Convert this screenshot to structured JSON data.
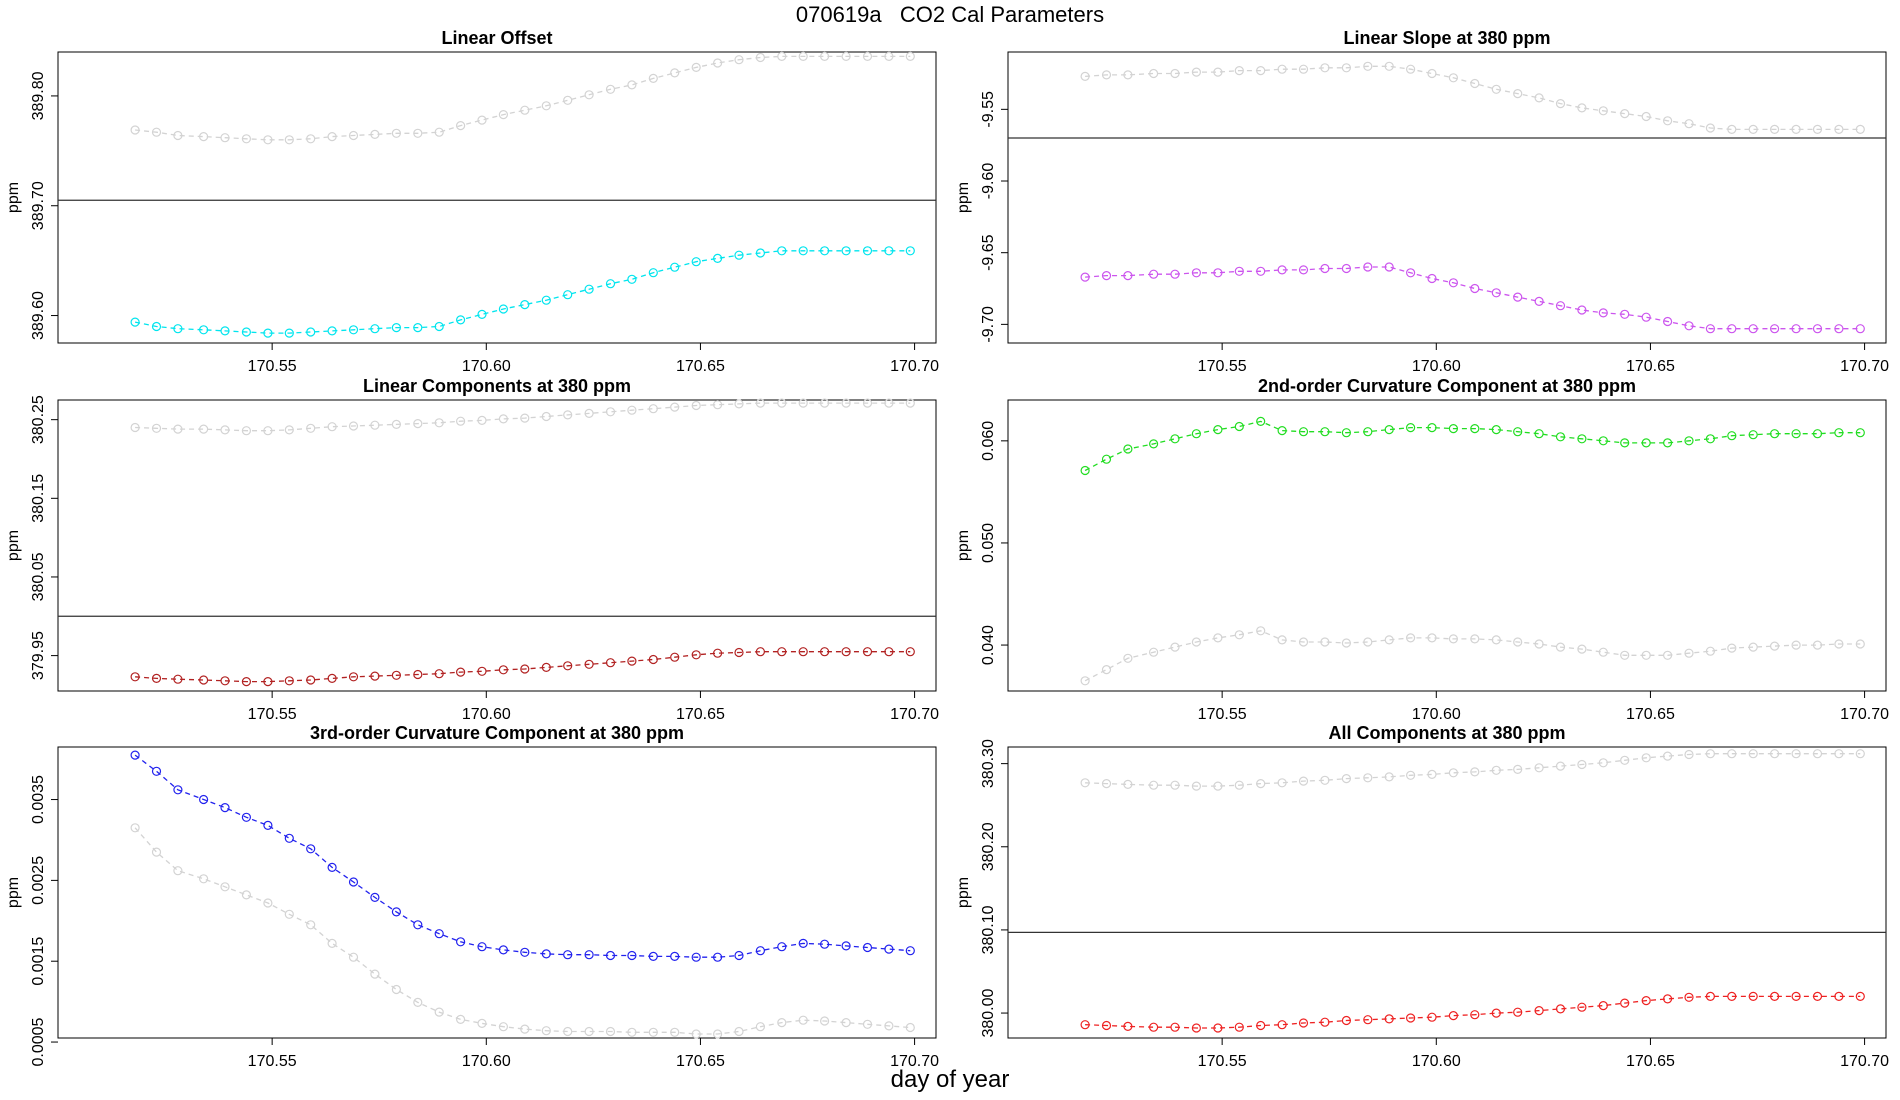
{
  "title": "070619a   CO2 Cal Parameters",
  "xlabel": "day of year",
  "chart_data": [
    {
      "type": "line",
      "title": "Linear Offset",
      "ylabel": "ppm",
      "xlim": [
        170.5,
        170.705
      ],
      "ylim": [
        389.575,
        389.84
      ],
      "x_ticks": [
        "170.55",
        "170.60",
        "170.65",
        "170.70"
      ],
      "y_ticks": [
        "389.60",
        "389.70",
        "389.80"
      ],
      "hline": 389.705,
      "x": [
        170.518,
        170.523,
        170.528,
        170.534,
        170.539,
        170.544,
        170.549,
        170.554,
        170.559,
        170.564,
        170.569,
        170.574,
        170.579,
        170.584,
        170.589,
        170.594,
        170.599,
        170.604,
        170.609,
        170.614,
        170.619,
        170.624,
        170.629,
        170.634,
        170.639,
        170.644,
        170.649,
        170.654,
        170.659,
        170.664,
        170.669,
        170.674,
        170.679,
        170.684,
        170.689,
        170.694,
        170.699
      ],
      "series": [
        {
          "color": "#d3d3d3",
          "values": [
            389.769,
            389.767,
            389.764,
            389.763,
            389.762,
            389.761,
            389.76,
            389.76,
            389.761,
            389.763,
            389.764,
            389.765,
            389.766,
            389.766,
            389.767,
            389.773,
            389.778,
            389.783,
            389.787,
            389.791,
            389.796,
            389.801,
            389.806,
            389.81,
            389.816,
            389.821,
            389.826,
            389.83,
            389.833,
            389.835,
            389.836,
            389.836,
            389.836,
            389.836,
            389.836,
            389.836,
            389.836
          ]
        },
        {
          "color": "#00e5ee",
          "values": [
            389.594,
            389.59,
            389.588,
            389.587,
            389.586,
            389.585,
            389.584,
            389.584,
            389.585,
            389.586,
            389.587,
            389.588,
            389.589,
            389.589,
            389.59,
            389.596,
            389.601,
            389.606,
            389.61,
            389.614,
            389.619,
            389.624,
            389.629,
            389.633,
            389.639,
            389.644,
            389.649,
            389.652,
            389.655,
            389.657,
            389.659,
            389.659,
            389.659,
            389.659,
            389.659,
            389.659,
            389.659
          ]
        }
      ]
    },
    {
      "type": "line",
      "title": "Linear Slope at 380 ppm",
      "ylabel": "ppm",
      "xlim": [
        170.5,
        170.705
      ],
      "ylim": [
        -9.713,
        -9.51
      ],
      "x_ticks": [
        "170.55",
        "170.60",
        "170.65",
        "170.70"
      ],
      "y_ticks": [
        "-9.55",
        "-9.60",
        "-9.65",
        "-9.70"
      ],
      "hline": -9.57,
      "x": [
        170.518,
        170.523,
        170.528,
        170.534,
        170.539,
        170.544,
        170.549,
        170.554,
        170.559,
        170.564,
        170.569,
        170.574,
        170.579,
        170.584,
        170.589,
        170.594,
        170.599,
        170.604,
        170.609,
        170.614,
        170.619,
        170.624,
        170.629,
        170.634,
        170.639,
        170.644,
        170.649,
        170.654,
        170.659,
        170.664,
        170.669,
        170.674,
        170.679,
        170.684,
        170.689,
        170.694,
        170.699
      ],
      "series": [
        {
          "color": "#d3d3d3",
          "values": [
            -9.527,
            -9.526,
            -9.526,
            -9.525,
            -9.525,
            -9.524,
            -9.524,
            -9.523,
            -9.523,
            -9.522,
            -9.522,
            -9.521,
            -9.521,
            -9.52,
            -9.52,
            -9.522,
            -9.525,
            -9.528,
            -9.532,
            -9.536,
            -9.539,
            -9.542,
            -9.546,
            -9.549,
            -9.551,
            -9.553,
            -9.555,
            -9.558,
            -9.56,
            -9.563,
            -9.564,
            -9.564,
            -9.564,
            -9.564,
            -9.564,
            -9.564,
            -9.564
          ]
        },
        {
          "color": "#cc55ee",
          "values": [
            -9.667,
            -9.666,
            -9.666,
            -9.665,
            -9.665,
            -9.664,
            -9.664,
            -9.663,
            -9.663,
            -9.662,
            -9.662,
            -9.661,
            -9.661,
            -9.66,
            -9.66,
            -9.664,
            -9.668,
            -9.671,
            -9.675,
            -9.678,
            -9.681,
            -9.684,
            -9.687,
            -9.69,
            -9.692,
            -9.693,
            -9.695,
            -9.698,
            -9.701,
            -9.703,
            -9.703,
            -9.703,
            -9.703,
            -9.703,
            -9.703,
            -9.703,
            -9.703
          ]
        }
      ]
    },
    {
      "type": "line",
      "title": "Linear Components at 380 ppm",
      "ylabel": "ppm",
      "xlim": [
        170.5,
        170.705
      ],
      "ylim": [
        379.905,
        380.275
      ],
      "x_ticks": [
        "170.55",
        "170.60",
        "170.65",
        "170.70"
      ],
      "y_ticks": [
        "379.95",
        "380.05",
        "380.15",
        "380.25"
      ],
      "hline": 380.0,
      "x": [
        170.518,
        170.523,
        170.528,
        170.534,
        170.539,
        170.544,
        170.549,
        170.554,
        170.559,
        170.564,
        170.569,
        170.574,
        170.579,
        170.584,
        170.589,
        170.594,
        170.599,
        170.604,
        170.609,
        170.614,
        170.619,
        170.624,
        170.629,
        170.634,
        170.639,
        170.644,
        170.649,
        170.654,
        170.659,
        170.664,
        170.669,
        170.674,
        170.679,
        170.684,
        170.689,
        170.694,
        170.699
      ],
      "series": [
        {
          "color": "#d3d3d3",
          "values": [
            380.24,
            380.239,
            380.238,
            380.238,
            380.237,
            380.236,
            380.236,
            380.237,
            380.239,
            380.241,
            380.242,
            380.243,
            380.244,
            380.245,
            380.246,
            380.248,
            380.249,
            380.251,
            380.252,
            380.254,
            380.256,
            380.258,
            380.26,
            380.262,
            380.264,
            380.266,
            380.268,
            380.269,
            380.27,
            380.271,
            380.271,
            380.271,
            380.271,
            380.271,
            380.271,
            380.271,
            380.271
          ]
        },
        {
          "color": "#b22222",
          "values": [
            379.923,
            379.921,
            379.92,
            379.919,
            379.918,
            379.917,
            379.917,
            379.918,
            379.919,
            379.921,
            379.923,
            379.924,
            379.925,
            379.926,
            379.927,
            379.929,
            379.93,
            379.932,
            379.933,
            379.935,
            379.937,
            379.939,
            379.941,
            379.943,
            379.945,
            379.948,
            379.951,
            379.953,
            379.954,
            379.955,
            379.955,
            379.955,
            379.955,
            379.955,
            379.955,
            379.955,
            379.955
          ]
        }
      ]
    },
    {
      "type": "line",
      "title": "2nd-order Curvature Component at 380 ppm",
      "ylabel": "ppm",
      "xlim": [
        170.5,
        170.705
      ],
      "ylim": [
        0.0355,
        0.064
      ],
      "x_ticks": [
        "170.55",
        "170.60",
        "170.65",
        "170.70"
      ],
      "y_ticks": [
        "0.040",
        "0.050",
        "0.060"
      ],
      "x": [
        170.518,
        170.523,
        170.528,
        170.534,
        170.539,
        170.544,
        170.549,
        170.554,
        170.559,
        170.564,
        170.569,
        170.574,
        170.579,
        170.584,
        170.589,
        170.594,
        170.599,
        170.604,
        170.609,
        170.614,
        170.619,
        170.624,
        170.629,
        170.634,
        170.639,
        170.644,
        170.649,
        170.654,
        170.659,
        170.664,
        170.669,
        170.674,
        170.679,
        170.684,
        170.689,
        170.694,
        170.699
      ],
      "series": [
        {
          "color": "#d3d3d3",
          "values": [
            0.0365,
            0.0376,
            0.0387,
            0.0393,
            0.0398,
            0.0403,
            0.0407,
            0.041,
            0.0414,
            0.0405,
            0.0403,
            0.0403,
            0.0402,
            0.0403,
            0.0405,
            0.0407,
            0.0407,
            0.0406,
            0.0406,
            0.0405,
            0.0403,
            0.0401,
            0.0398,
            0.0396,
            0.0393,
            0.039,
            0.039,
            0.039,
            0.0392,
            0.0394,
            0.0397,
            0.0398,
            0.0399,
            0.04,
            0.04,
            0.0401,
            0.0401
          ]
        },
        {
          "color": "#22dd22",
          "values": [
            0.0571,
            0.0582,
            0.0592,
            0.0597,
            0.0602,
            0.0607,
            0.0611,
            0.0614,
            0.0619,
            0.061,
            0.0609,
            0.0609,
            0.0608,
            0.0609,
            0.0611,
            0.0613,
            0.0613,
            0.0612,
            0.0612,
            0.0611,
            0.0609,
            0.0607,
            0.0604,
            0.0602,
            0.06,
            0.0598,
            0.0598,
            0.0598,
            0.06,
            0.0602,
            0.0605,
            0.0606,
            0.0607,
            0.0607,
            0.0607,
            0.0608,
            0.0608
          ]
        }
      ]
    },
    {
      "type": "line",
      "title": "3rd-order Curvature Component at 380 ppm",
      "ylabel": "ppm",
      "xlim": [
        170.5,
        170.705
      ],
      "ylim": [
        0.00055,
        0.00415
      ],
      "x_ticks": [
        "170.55",
        "170.60",
        "170.65",
        "170.70"
      ],
      "y_ticks": [
        "0.0005",
        "0.0015",
        "0.0025",
        "0.0035"
      ],
      "x": [
        170.518,
        170.523,
        170.528,
        170.534,
        170.539,
        170.544,
        170.549,
        170.554,
        170.559,
        170.564,
        170.569,
        170.574,
        170.579,
        170.584,
        170.589,
        170.594,
        170.599,
        170.604,
        170.609,
        170.614,
        170.619,
        170.624,
        170.629,
        170.634,
        170.639,
        170.644,
        170.649,
        170.654,
        170.659,
        170.664,
        170.669,
        170.674,
        170.679,
        170.684,
        170.689,
        170.694,
        170.699
      ],
      "series": [
        {
          "color": "#d3d3d3",
          "values": [
            0.00315,
            0.00285,
            0.00262,
            0.00252,
            0.00242,
            0.00232,
            0.00222,
            0.00208,
            0.00195,
            0.00172,
            0.00155,
            0.00134,
            0.00115,
            0.00099,
            0.00087,
            0.00078,
            0.00073,
            0.00069,
            0.00066,
            0.00064,
            0.00063,
            0.00063,
            0.00063,
            0.00062,
            0.00062,
            0.00062,
            0.0006,
            0.0006,
            0.00063,
            0.00069,
            0.00074,
            0.00077,
            0.00076,
            0.00074,
            0.00072,
            0.0007,
            0.00068
          ]
        },
        {
          "color": "#2222ee",
          "values": [
            0.00405,
            0.00385,
            0.00362,
            0.0035,
            0.0034,
            0.00328,
            0.00318,
            0.00302,
            0.00289,
            0.00266,
            0.00248,
            0.00229,
            0.00211,
            0.00195,
            0.00184,
            0.00174,
            0.00168,
            0.00164,
            0.00161,
            0.00159,
            0.00158,
            0.00158,
            0.00157,
            0.00157,
            0.00156,
            0.00156,
            0.00155,
            0.00155,
            0.00157,
            0.00163,
            0.00168,
            0.00172,
            0.00171,
            0.00169,
            0.00167,
            0.00165,
            0.00163
          ]
        }
      ]
    },
    {
      "type": "line",
      "title": "All Components at 380 ppm",
      "ylabel": "ppm",
      "xlim": [
        170.5,
        170.705
      ],
      "ylim": [
        379.97,
        380.32
      ],
      "x_ticks": [
        "170.55",
        "170.60",
        "170.65",
        "170.70"
      ],
      "y_ticks": [
        "380.00",
        "380.10",
        "380.20",
        "380.30"
      ],
      "hline": 380.097,
      "x": [
        170.518,
        170.523,
        170.528,
        170.534,
        170.539,
        170.544,
        170.549,
        170.554,
        170.559,
        170.564,
        170.569,
        170.574,
        170.579,
        170.584,
        170.589,
        170.594,
        170.599,
        170.604,
        170.609,
        170.614,
        170.619,
        170.624,
        170.629,
        170.634,
        170.639,
        170.644,
        170.649,
        170.654,
        170.659,
        170.664,
        170.669,
        170.674,
        170.679,
        170.684,
        170.689,
        170.694,
        170.699
      ],
      "series": [
        {
          "color": "#d3d3d3",
          "values": [
            380.277,
            380.276,
            380.275,
            380.274,
            380.274,
            380.273,
            380.273,
            380.274,
            380.276,
            380.277,
            380.279,
            380.28,
            380.282,
            380.283,
            380.284,
            380.286,
            380.287,
            380.289,
            380.29,
            380.292,
            380.293,
            380.295,
            380.297,
            380.299,
            380.301,
            380.304,
            380.307,
            380.309,
            380.311,
            380.312,
            380.312,
            380.312,
            380.312,
            380.312,
            380.312,
            380.312,
            380.312
          ]
        },
        {
          "color": "#ee2222",
          "values": [
            379.986,
            379.985,
            379.984,
            379.983,
            379.983,
            379.982,
            379.982,
            379.983,
            379.985,
            379.986,
            379.988,
            379.989,
            379.991,
            379.992,
            379.993,
            379.994,
            379.995,
            379.997,
            379.998,
            380.0,
            380.001,
            380.003,
            380.005,
            380.007,
            380.009,
            380.012,
            380.015,
            380.017,
            380.019,
            380.02,
            380.02,
            380.02,
            380.02,
            380.02,
            380.02,
            380.02,
            380.02
          ]
        }
      ]
    }
  ]
}
